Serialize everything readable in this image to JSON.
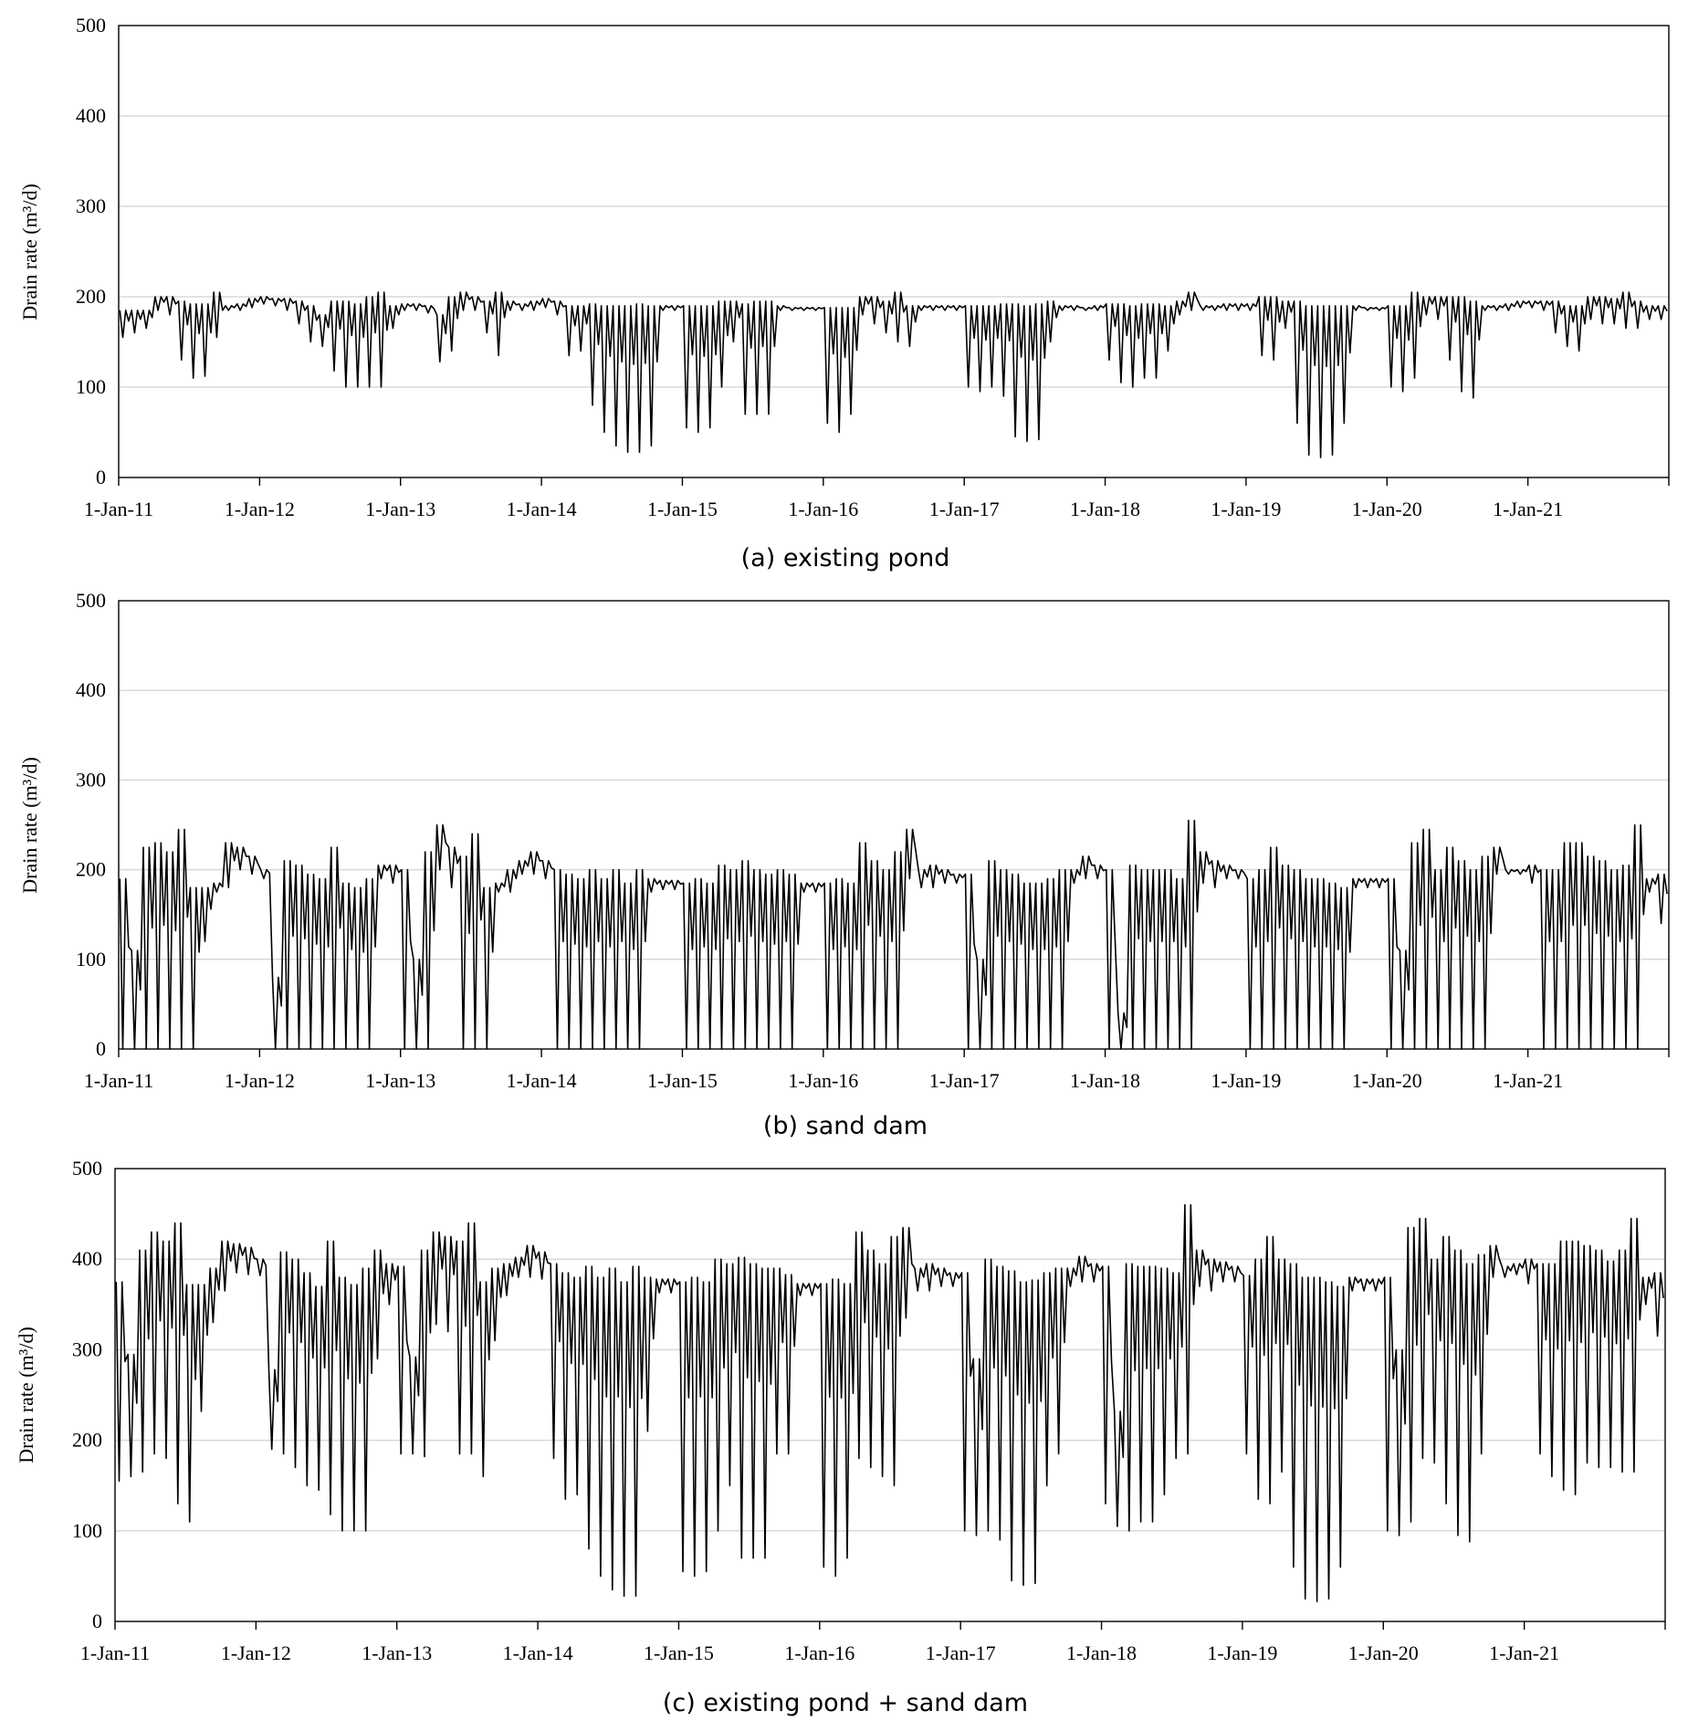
{
  "chart_data": [
    {
      "type": "line",
      "caption": "(a) existing pond",
      "ylabel": "Drain rate (m³/d)",
      "xlabel": "",
      "ylim": [
        0,
        500
      ],
      "yticks": [
        0,
        100,
        200,
        300,
        400,
        500
      ],
      "xlim": [
        "2011-01-01",
        "2022-01-01"
      ],
      "xtick_labels": [
        "1-Jan-11",
        "1-Jan-12",
        "1-Jan-13",
        "1-Jan-14",
        "1-Jan-15",
        "1-Jan-16",
        "1-Jan-17",
        "1-Jan-18",
        "1-Jan-19",
        "1-Jan-20",
        "1-Jan-21"
      ],
      "grid": true,
      "line_color": "#000000",
      "grid_color": "#d9d9d9",
      "monthly_start": "2011-01",
      "monthly_high": [
        185,
        185,
        185,
        200,
        200,
        195,
        192,
        192,
        205,
        190,
        192,
        198,
        200,
        198,
        198,
        195,
        190,
        180,
        195,
        195,
        192,
        200,
        205,
        190,
        192,
        192,
        190,
        180,
        200,
        205,
        200,
        195,
        205,
        195,
        192,
        195,
        198,
        195,
        190,
        190,
        192,
        190,
        190,
        190,
        192,
        190,
        190,
        190,
        190,
        190,
        190,
        195,
        195,
        192,
        195,
        195,
        190,
        188,
        188,
        188,
        188,
        188,
        188,
        200,
        200,
        195,
        205,
        190,
        190,
        190,
        190,
        190,
        190,
        190,
        190,
        192,
        192,
        190,
        192,
        195,
        190,
        190,
        188,
        190,
        192,
        192,
        190,
        192,
        192,
        190,
        195,
        205,
        190,
        190,
        192,
        192,
        192,
        200,
        200,
        195,
        195,
        190,
        190,
        190,
        190,
        190,
        188,
        188,
        190,
        190,
        205,
        200,
        200,
        200,
        200,
        195,
        190,
        190,
        192,
        195,
        195,
        195,
        195,
        190,
        190,
        200,
        200,
        198,
        205,
        195,
        190,
        190
      ],
      "monthly_low": [
        155,
        160,
        165,
        185,
        180,
        130,
        110,
        112,
        155,
        185,
        185,
        188,
        192,
        190,
        185,
        170,
        150,
        145,
        118,
        100,
        100,
        100,
        100,
        165,
        185,
        185,
        182,
        128,
        140,
        185,
        185,
        160,
        135,
        185,
        185,
        185,
        188,
        180,
        135,
        140,
        80,
        50,
        35,
        28,
        28,
        35,
        185,
        185,
        55,
        50,
        55,
        100,
        150,
        70,
        70,
        70,
        185,
        185,
        185,
        185,
        60,
        50,
        70,
        180,
        170,
        160,
        150,
        145,
        185,
        185,
        185,
        185,
        100,
        95,
        100,
        90,
        45,
        40,
        42,
        150,
        185,
        185,
        185,
        185,
        130,
        105,
        100,
        110,
        110,
        140,
        180,
        185,
        185,
        185,
        185,
        185,
        185,
        135,
        130,
        165,
        60,
        25,
        22,
        25,
        60,
        185,
        185,
        185,
        100,
        95,
        110,
        180,
        175,
        130,
        95,
        88,
        185,
        185,
        185,
        188,
        188,
        185,
        160,
        145,
        140,
        175,
        170,
        170,
        165,
        165,
        175,
        175
      ]
    },
    {
      "type": "line",
      "caption": "(b) sand dam",
      "ylabel": "Drain rate (m³/d)",
      "xlabel": "",
      "ylim": [
        0,
        500
      ],
      "yticks": [
        0,
        100,
        200,
        300,
        400,
        500
      ],
      "xlim": [
        "2011-01-01",
        "2022-01-01"
      ],
      "xtick_labels": [
        "1-Jan-11",
        "1-Jan-12",
        "1-Jan-13",
        "1-Jan-14",
        "1-Jan-15",
        "1-Jan-16",
        "1-Jan-17",
        "1-Jan-18",
        "1-Jan-19",
        "1-Jan-20",
        "1-Jan-21"
      ],
      "grid": true,
      "line_color": "#000000",
      "grid_color": "#d9d9d9",
      "monthly_start": "2011-01",
      "monthly_high": [
        190,
        110,
        225,
        230,
        220,
        245,
        180,
        180,
        185,
        230,
        225,
        215,
        200,
        80,
        210,
        205,
        195,
        190,
        225,
        185,
        180,
        190,
        205,
        205,
        200,
        100,
        220,
        250,
        225,
        215,
        240,
        180,
        185,
        200,
        210,
        220,
        210,
        200,
        195,
        190,
        200,
        190,
        200,
        185,
        200,
        190,
        188,
        188,
        185,
        190,
        185,
        205,
        200,
        210,
        200,
        195,
        200,
        195,
        185,
        185,
        185,
        190,
        185,
        230,
        210,
        200,
        220,
        245,
        200,
        205,
        200,
        195,
        195,
        100,
        210,
        200,
        195,
        185,
        185,
        190,
        200,
        200,
        215,
        205,
        200,
        40,
        205,
        200,
        200,
        200,
        190,
        255,
        220,
        210,
        205,
        200,
        190,
        200,
        225,
        205,
        200,
        190,
        190,
        185,
        180,
        190,
        190,
        190,
        190,
        110,
        230,
        245,
        200,
        225,
        210,
        200,
        215,
        225,
        200,
        200,
        205,
        200,
        200,
        230,
        230,
        215,
        210,
        200,
        205,
        250,
        190,
        195
      ],
      "monthly_low": [
        0,
        0,
        0,
        0,
        0,
        0,
        0,
        120,
        175,
        180,
        200,
        195,
        190,
        0,
        0,
        0,
        0,
        0,
        0,
        0,
        0,
        0,
        190,
        185,
        0,
        0,
        0,
        200,
        180,
        0,
        0,
        0,
        175,
        175,
        195,
        195,
        190,
        0,
        0,
        0,
        0,
        0,
        0,
        0,
        0,
        175,
        178,
        178,
        0,
        0,
        0,
        0,
        0,
        0,
        0,
        0,
        0,
        0,
        175,
        175,
        0,
        0,
        0,
        0,
        0,
        0,
        0,
        190,
        180,
        180,
        185,
        185,
        0,
        0,
        0,
        0,
        0,
        0,
        0,
        0,
        0,
        185,
        190,
        190,
        0,
        0,
        0,
        0,
        0,
        0,
        0,
        0,
        185,
        180,
        190,
        190,
        0,
        0,
        0,
        0,
        0,
        0,
        0,
        0,
        0,
        180,
        180,
        180,
        0,
        0,
        0,
        0,
        0,
        0,
        0,
        0,
        0,
        195,
        195,
        195,
        185,
        0,
        0,
        0,
        0,
        0,
        0,
        0,
        0,
        0,
        175,
        140
      ]
    },
    {
      "type": "line",
      "caption": "(c) existing pond + sand dam",
      "ylabel": "Drain rate (m³/d)",
      "xlabel": "",
      "ylim": [
        0,
        500
      ],
      "yticks": [
        0,
        100,
        200,
        300,
        400,
        500
      ],
      "xlim": [
        "2011-01-01",
        "2022-01-01"
      ],
      "xtick_labels": [
        "1-Jan-11",
        "1-Jan-12",
        "1-Jan-13",
        "1-Jan-14",
        "1-Jan-15",
        "1-Jan-16",
        "1-Jan-17",
        "1-Jan-18",
        "1-Jan-19",
        "1-Jan-20",
        "1-Jan-21"
      ],
      "grid": true,
      "line_color": "#000000",
      "grid_color": "#d9d9d9",
      "monthly_start": "2011-01",
      "monthly_high": [
        375,
        295,
        410,
        430,
        420,
        440,
        372,
        372,
        390,
        420,
        417,
        413,
        400,
        278,
        408,
        400,
        385,
        370,
        420,
        380,
        372,
        390,
        410,
        395,
        392,
        292,
        410,
        430,
        425,
        420,
        440,
        375,
        390,
        395,
        402,
        415,
        408,
        395,
        385,
        380,
        392,
        380,
        390,
        375,
        392,
        380,
        378,
        378,
        375,
        380,
        375,
        400,
        395,
        402,
        395,
        390,
        390,
        383,
        373,
        373,
        373,
        378,
        373,
        430,
        410,
        395,
        425,
        435,
        390,
        395,
        390,
        385,
        385,
        290,
        400,
        392,
        387,
        375,
        377,
        385,
        390,
        390,
        403,
        395,
        392,
        232,
        395,
        392,
        392,
        390,
        385,
        460,
        410,
        400,
        397,
        392,
        382,
        400,
        425,
        400,
        395,
        380,
        380,
        375,
        370,
        380,
        378,
        378,
        380,
        300,
        435,
        445,
        400,
        425,
        410,
        395,
        405,
        415,
        392,
        395,
        400,
        395,
        395,
        420,
        420,
        415,
        410,
        398,
        410,
        445,
        380,
        385
      ],
      "monthly_low": [
        155,
        160,
        165,
        185,
        180,
        130,
        110,
        232,
        330,
        365,
        385,
        383,
        382,
        190,
        185,
        170,
        150,
        145,
        118,
        100,
        100,
        100,
        290,
        350,
        185,
        185,
        182,
        328,
        320,
        185,
        185,
        160,
        310,
        360,
        380,
        380,
        378,
        180,
        135,
        140,
        80,
        50,
        35,
        28,
        28,
        210,
        363,
        363,
        55,
        50,
        55,
        100,
        150,
        70,
        70,
        70,
        185,
        185,
        360,
        360,
        60,
        50,
        70,
        180,
        170,
        160,
        150,
        335,
        365,
        365,
        370,
        370,
        100,
        95,
        100,
        90,
        45,
        40,
        42,
        150,
        185,
        370,
        375,
        375,
        130,
        105,
        100,
        110,
        110,
        140,
        180,
        185,
        370,
        365,
        375,
        375,
        185,
        135,
        130,
        165,
        60,
        25,
        22,
        25,
        60,
        365,
        365,
        365,
        100,
        95,
        110,
        180,
        175,
        130,
        95,
        88,
        185,
        380,
        380,
        383,
        373,
        185,
        160,
        145,
        140,
        175,
        170,
        170,
        165,
        165,
        350,
        315
      ]
    }
  ]
}
